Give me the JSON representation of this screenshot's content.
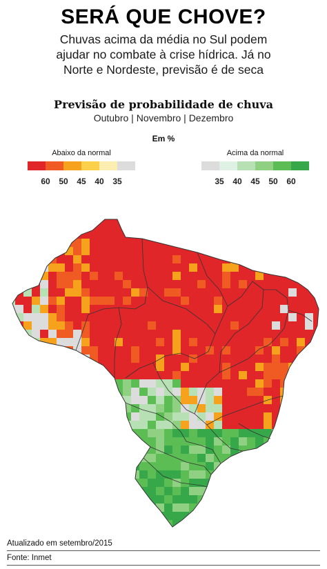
{
  "header": {
    "headline": "SERÁ QUE CHOVE?",
    "subhead_lines": [
      "Chuvas acima da média no Sul podem",
      "ajudar no combate à crise hídrica. Já no",
      "Norte e Nordeste, previsão é de seca"
    ]
  },
  "map": {
    "title": "Previsão de probabilidade de chuva",
    "subtitle": "Outubro | Novembro | Dezembro",
    "unit": "Em %"
  },
  "legend": {
    "below": {
      "title": "Abaixo da normal",
      "ticks": [
        "60",
        "50",
        "45",
        "40",
        "35"
      ],
      "colors": [
        "#e1262a",
        "#f05a23",
        "#f7a21c",
        "#fcd04a",
        "#fbeeb0",
        "#dcdcdc"
      ]
    },
    "above": {
      "title": "Acima da normal",
      "ticks": [
        "35",
        "40",
        "45",
        "50",
        "60"
      ],
      "colors": [
        "#dcdcdc",
        "#dff1e2",
        "#b7e1b5",
        "#8fd082",
        "#5cbd55",
        "#36a84a"
      ]
    }
  },
  "footer": {
    "updated": "Atualizado em setembro/2015",
    "source": "Fonte: Inmet"
  },
  "colors": {
    "below_60": "#e1262a",
    "below_50": "#f05a23",
    "below_45": "#f7a21c",
    "below_40": "#fcd04a",
    "below_35": "#fbeeb0",
    "normal": "#dcdcdc",
    "above_35": "#dff1e2",
    "above_40": "#b7e1b5",
    "above_45": "#8fd082",
    "above_50": "#5cbd55",
    "above_60": "#36a84a",
    "state_border": "#333333"
  }
}
